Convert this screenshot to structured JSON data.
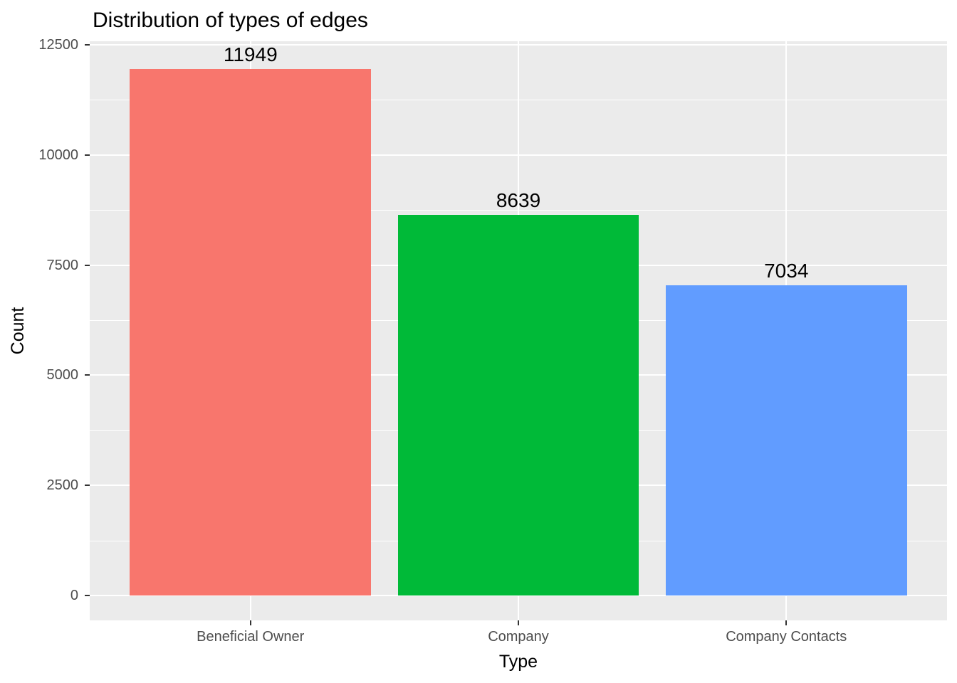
{
  "title": "Distribution of types of edges",
  "chart_data": {
    "type": "bar",
    "title": "Distribution of types of edges",
    "categories": [
      "Beneficial Owner",
      "Company",
      "Company Contacts"
    ],
    "values": [
      11949,
      8639,
      7034
    ],
    "bar_colors": [
      "#F8766D",
      "#00BA38",
      "#619CFF"
    ],
    "xlabel": "Type",
    "ylabel": "Count",
    "ylim": [
      0,
      12500
    ],
    "yticks": [
      0,
      2500,
      5000,
      7500,
      10000,
      12500
    ],
    "ytick_labels": [
      "0",
      "2500",
      "5000",
      "7500",
      "10000",
      "12500"
    ],
    "grid": "major-and-minor-horizontal, major-vertical-at-categories",
    "legend_position": "none",
    "panel_background": "#EBEBEB",
    "grid_color": "#FFFFFF",
    "axis_text_color": "#4D4D4D",
    "tick_mark_color": "#333333",
    "text_color": "#000000"
  }
}
